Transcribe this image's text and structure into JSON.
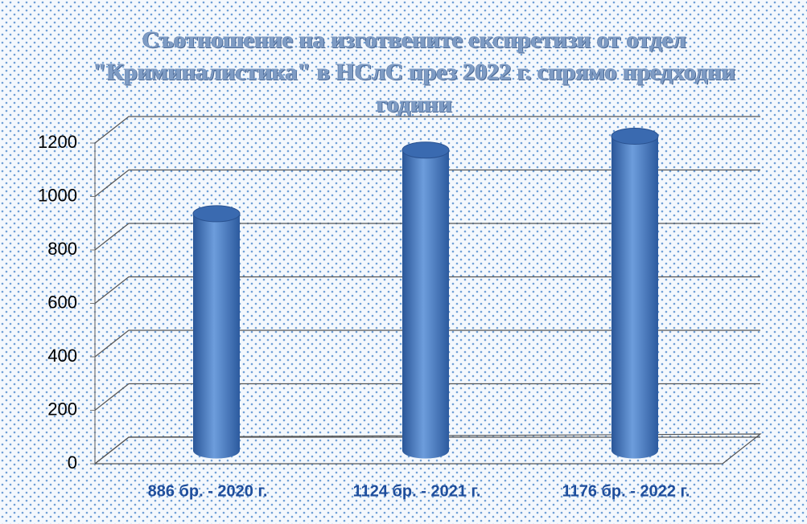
{
  "chart_data": {
    "type": "bar",
    "title": "Съотношение на изготвените експретизи от отдел \"Криминалистика\" в НСлС през 2022 г. спрямо предходни години",
    "categories": [
      "886 бр. - 2020 г.",
      "1124 бр. - 2021 г.",
      "1176 бр. - 2022 г."
    ],
    "values": [
      886,
      1124,
      1176
    ],
    "color": "#4a7cc4",
    "ylim": [
      0,
      1200
    ],
    "yticks": [
      0,
      200,
      400,
      600,
      800,
      1000,
      1200
    ],
    "grid": true
  }
}
